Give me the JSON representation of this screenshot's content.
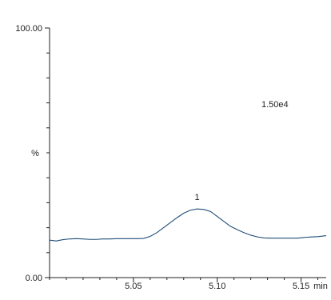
{
  "chart_data": {
    "type": "line",
    "title": "",
    "xlabel": "",
    "ylabel": "%",
    "x_unit_label": "min",
    "intensity_label": "1.50e4",
    "peak_label": "1",
    "xlim": [
      5.0,
      5.165
    ],
    "ylim": [
      0,
      100
    ],
    "y_tick_labels": [
      {
        "value": 100,
        "label": "100.00"
      },
      {
        "value": 0,
        "label": "0.00"
      }
    ],
    "y_minor_ticks": [
      10,
      20,
      30,
      40,
      50,
      60,
      70,
      80,
      90
    ],
    "x_tick_labels": [
      {
        "value": 5.05,
        "label": "5.05"
      },
      {
        "value": 5.1,
        "label": "5.10"
      },
      {
        "value": 5.15,
        "label": "5.15"
      }
    ],
    "x_minor_ticks": [
      5.0,
      5.01,
      5.02,
      5.03,
      5.04,
      5.06,
      5.07,
      5.08,
      5.09,
      5.11,
      5.12,
      5.13,
      5.14,
      5.16
    ],
    "grid": false,
    "colors": {
      "trace": "#1f4e79",
      "axis": "#222222"
    },
    "series": [
      {
        "x": [
          5.0,
          5.004,
          5.008,
          5.012,
          5.016,
          5.02,
          5.024,
          5.028,
          5.032,
          5.036,
          5.04,
          5.044,
          5.048,
          5.052,
          5.056,
          5.06,
          5.064,
          5.068,
          5.072,
          5.076,
          5.08,
          5.084,
          5.088,
          5.092,
          5.096,
          5.1,
          5.104,
          5.108,
          5.112,
          5.116,
          5.12,
          5.124,
          5.128,
          5.132,
          5.136,
          5.14,
          5.144,
          5.148,
          5.152,
          5.156,
          5.16,
          5.165
        ],
        "values": [
          15.0,
          14.7,
          15.2,
          15.5,
          15.6,
          15.5,
          15.3,
          15.3,
          15.5,
          15.5,
          15.6,
          15.6,
          15.6,
          15.6,
          15.7,
          16.5,
          18.0,
          20.0,
          22.0,
          24.0,
          25.8,
          27.0,
          27.5,
          27.3,
          26.5,
          24.5,
          22.5,
          20.5,
          19.2,
          18.0,
          17.0,
          16.3,
          15.9,
          15.8,
          15.8,
          15.8,
          15.8,
          15.8,
          16.1,
          16.3,
          16.4,
          16.8
        ]
      }
    ]
  }
}
